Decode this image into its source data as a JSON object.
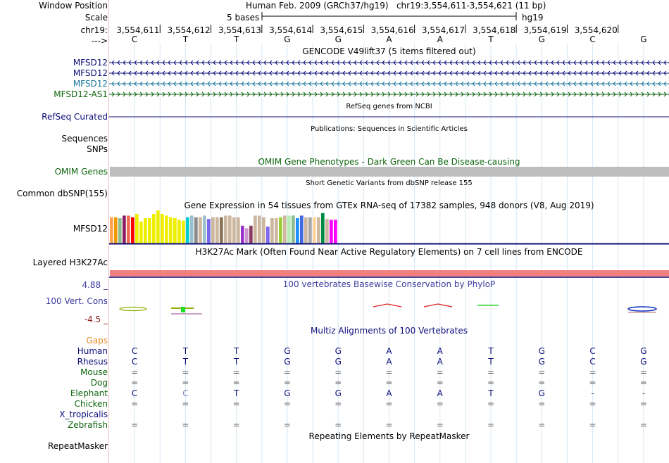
{
  "header": {
    "window_position_label": "Window Position",
    "scale_label": "Scale",
    "chrom_label": "chr19:",
    "strand_label": "--->",
    "window_position_value": "Human Feb. 2009 (GRCh37/hg19)   chr19:3,554,611-3,554,621 (11 bp)",
    "scale_value": "5 bases",
    "assembly": "hg19",
    "coordinates": [
      "3,554,611",
      "3,554,612",
      "3,554,613",
      "3,554,614",
      "3,554,615",
      "3,554,616",
      "3,554,617",
      "3,554,618",
      "3,554,619",
      "3,554,620"
    ],
    "bases": [
      "C",
      "T",
      "T",
      "G",
      "G",
      "A",
      "A",
      "T",
      "G",
      "C",
      "G"
    ]
  },
  "gencode": {
    "title": "GENCODE V49lift37 (5 items filtered out)",
    "items": [
      {
        "label": "MFSD12",
        "color": "#0c0c78",
        "direction": "left"
      },
      {
        "label": "MFSD12",
        "color": "#0c0c78",
        "direction": "left"
      },
      {
        "label": "MFSD12",
        "color": "#18759c",
        "direction": "left"
      },
      {
        "label": "MFSD12-AS1",
        "color": "#0c640c",
        "direction": "right"
      }
    ]
  },
  "refseq": {
    "title": "RefSeq genes from NCBI",
    "label": "RefSeq Curated",
    "color": "#0c0c78"
  },
  "publications": {
    "title": "Publications: Sequences in Scientific Articles",
    "label_1": "Sequences",
    "label_2": "SNPs"
  },
  "omim": {
    "title": "OMIM Gene Phenotypes - Dark Green Can Be Disease-causing",
    "label": "OMIM Genes",
    "title_color": "#0c640c",
    "bar_color": "#bebebe"
  },
  "dbsnp": {
    "title": "Short Genetic Variants from dbSNP release 155",
    "label": "Common dbSNP(155)"
  },
  "gtex": {
    "title": "Gene Expression in 54 tissues from GTEx RNA-seq of 17382 samples, 948 donors (V8, Aug 2019)",
    "label": "MFSD12",
    "bars": [
      {
        "color": "#ffa54f",
        "value": 0.62
      },
      {
        "color": "#ee9a00",
        "value": 0.62
      },
      {
        "color": "#8fbc8f",
        "value": 0.6
      },
      {
        "color": "#8b1c62",
        "value": 0.66
      },
      {
        "color": "#ee6a50",
        "value": 0.66
      },
      {
        "color": "#ff0000",
        "value": 0.62
      },
      {
        "color": "#eeee00",
        "value": 0.7
      },
      {
        "color": "#eeee00",
        "value": 0.52
      },
      {
        "color": "#eeee00",
        "value": 0.6
      },
      {
        "color": "#eeee00",
        "value": 0.6
      },
      {
        "color": "#eeee00",
        "value": 0.7
      },
      {
        "color": "#eeee00",
        "value": 0.78
      },
      {
        "color": "#eeee00",
        "value": 0.7
      },
      {
        "color": "#eeee00",
        "value": 0.66
      },
      {
        "color": "#eeee00",
        "value": 0.62
      },
      {
        "color": "#eeee00",
        "value": 0.6
      },
      {
        "color": "#eeee00",
        "value": 0.56
      },
      {
        "color": "#eeee00",
        "value": 0.54
      },
      {
        "color": "#00cdcd",
        "value": 0.62
      },
      {
        "color": "#9ac0cd",
        "value": 0.66
      },
      {
        "color": "#8b8989",
        "value": 0.62
      },
      {
        "color": "#cdb79e",
        "value": 0.62
      },
      {
        "color": "#9ac0cd",
        "value": 0.66
      },
      {
        "color": "#7a67ee",
        "value": 0.58
      },
      {
        "color": "#cdb79e",
        "value": 0.62
      },
      {
        "color": "#cdb79e",
        "value": 0.62
      },
      {
        "color": "#8b7355",
        "value": 0.62
      },
      {
        "color": "#cdb79e",
        "value": 0.66
      },
      {
        "color": "#cdb79e",
        "value": 0.66
      },
      {
        "color": "#cdb79e",
        "value": 0.62
      },
      {
        "color": "#cdb79e",
        "value": 0.62
      },
      {
        "color": "#9a32cd",
        "value": 0.42
      },
      {
        "color": "#cd96cd",
        "value": 0.36
      },
      {
        "color": "#8b3a62",
        "value": 0.42
      },
      {
        "color": "#cdb79e",
        "value": 0.66
      },
      {
        "color": "#cdb79e",
        "value": 0.66
      },
      {
        "color": "#cdb79e",
        "value": 0.62
      },
      {
        "color": "#7a67ee",
        "value": 0.4
      },
      {
        "color": "#cdb79e",
        "value": 0.6
      },
      {
        "color": "#cdb79e",
        "value": 0.6
      },
      {
        "color": "#9acd32",
        "value": 0.62
      },
      {
        "color": "#cdb79e",
        "value": 0.66
      },
      {
        "color": "#b4eeb4",
        "value": 0.66
      },
      {
        "color": "#8fbc8f",
        "value": 0.66
      },
      {
        "color": "#1e90ff",
        "value": 0.6
      },
      {
        "color": "#4169e1",
        "value": 0.66
      },
      {
        "color": "#cdb79e",
        "value": 0.62
      },
      {
        "color": "#a6a6a6",
        "value": 0.62
      },
      {
        "color": "#ffd39b",
        "value": 0.62
      },
      {
        "color": "#cdb79e",
        "value": 0.62
      },
      {
        "color": "#008b45",
        "value": 0.72
      },
      {
        "color": "#cdb79e",
        "value": 0.58
      },
      {
        "color": "#ff00ff",
        "value": 0.56
      },
      {
        "color": "#ff00ff",
        "value": 0.56
      }
    ]
  },
  "h3k27ac": {
    "title": "H3K27Ac Mark (Often Found Near Active Regulatory Elements) on 7 cell lines from ENCODE",
    "label": "Layered H3K27Ac",
    "bar_color": "#f08080"
  },
  "phylop": {
    "title": "100 vertebrates Basewise Conservation by PhyloP",
    "label": "100 Vert. Cons",
    "max": "4.88 _",
    "min": "-4.5 _",
    "title_color": "#3c3ca0",
    "max_color": "#3c3ca0",
    "min_color": "#8b2020"
  },
  "multiz": {
    "title": "Multiz Alignments of 100 Vertebrates",
    "title_color": "#0c0c78",
    "gaps_label": "Gaps",
    "gaps_color": "#e08a1e",
    "species": [
      {
        "name": "Human",
        "color": "#0c0c78",
        "bases": [
          "C",
          "T",
          "T",
          "G",
          "G",
          "A",
          "A",
          "T",
          "G",
          "C",
          "G"
        ]
      },
      {
        "name": "Rhesus",
        "color": "#0c0c78",
        "bases": [
          "C",
          "T",
          "T",
          "G",
          "G",
          "A",
          "A",
          "T",
          "G",
          "C",
          "G"
        ]
      },
      {
        "name": "Mouse",
        "color": "#0c640c",
        "bases": [
          "=",
          "=",
          "=",
          "=",
          "=",
          "=",
          "=",
          "=",
          "=",
          "=",
          "="
        ]
      },
      {
        "name": "Dog",
        "color": "#0c640c",
        "bases": [
          "=",
          "=",
          "=",
          "=",
          "=",
          "=",
          "=",
          "=",
          "=",
          "=",
          "="
        ]
      },
      {
        "name": "Elephant",
        "color": "#0c640c",
        "bases": [
          "C",
          "C",
          "T",
          "G",
          "G",
          "A",
          "A",
          "T",
          "G",
          "-",
          "-"
        ]
      },
      {
        "name": "Chicken",
        "color": "#0c640c",
        "bases": [
          "=",
          "=",
          "=",
          "=",
          "=",
          "=",
          "=",
          "=",
          "=",
          "=",
          "="
        ]
      },
      {
        "name": "X_tropicalis",
        "color": "#0c0c78",
        "bases": [
          "",
          "",
          "",
          "",
          "",
          "",
          "",
          "",
          "",
          "",
          ""
        ]
      },
      {
        "name": "Zebrafish",
        "color": "#0c640c",
        "bases": [
          "=",
          "=",
          "=",
          "=",
          "=",
          "=",
          "=",
          "=",
          "=",
          "=",
          "="
        ]
      }
    ]
  },
  "repeatmasker": {
    "title": "Repeating Elements by RepeatMasker",
    "label": "RepeatMasker"
  }
}
